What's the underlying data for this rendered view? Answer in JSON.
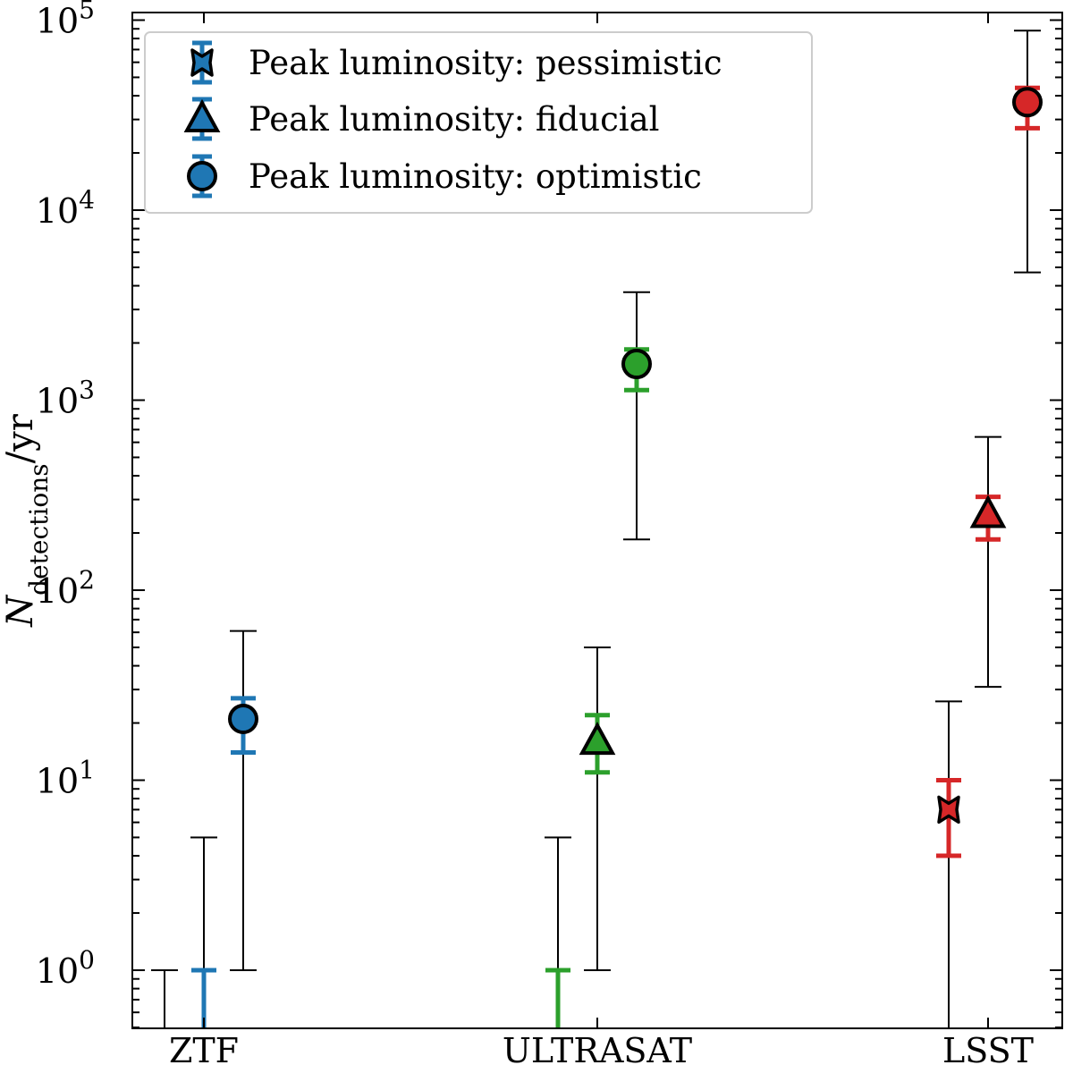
{
  "chart_data": {
    "type": "scatter",
    "title": "",
    "xlabel": "",
    "ylabel": "N_detections/yr",
    "ylabel_main": "N",
    "ylabel_sub": "detections",
    "ylabel_tail": "/yr",
    "yscale": "log",
    "ylim": [
      0.5,
      110000
    ],
    "grid": false,
    "legend_position": "top-left",
    "categories": [
      "ZTF",
      "ULTRASAT",
      "LSST"
    ],
    "category_colors": {
      "ZTF": "#1f77b4",
      "ULTRASAT": "#2ca02c",
      "LSST": "#d62728"
    },
    "ytick_labels": [
      {
        "value": 1,
        "base": "10",
        "exp": "0"
      },
      {
        "value": 10,
        "base": "10",
        "exp": "1"
      },
      {
        "value": 100,
        "base": "10",
        "exp": "2"
      },
      {
        "value": 1000,
        "base": "10",
        "exp": "3"
      },
      {
        "value": 10000,
        "base": "10",
        "exp": "4"
      },
      {
        "value": 100000,
        "base": "10",
        "exp": "5"
      }
    ],
    "series": [
      {
        "name": "Peak luminosity: pessimistic",
        "marker": "X",
        "legend_color": "#1f77b4",
        "points": [
          {
            "category": "ZTF",
            "value": null,
            "inner": null,
            "outer": [
              0,
              1
            ]
          },
          {
            "category": "ULTRASAT",
            "value": null,
            "inner": [
              0,
              1
            ],
            "outer": [
              0,
              5
            ]
          },
          {
            "category": "LSST",
            "value": 7,
            "inner": [
              4,
              10
            ],
            "outer": [
              0,
              26
            ]
          }
        ]
      },
      {
        "name": "Peak luminosity: fiducial",
        "marker": "triangle",
        "legend_color": "#1f77b4",
        "points": [
          {
            "category": "ZTF",
            "value": null,
            "inner": [
              0,
              1
            ],
            "outer": [
              0,
              5
            ]
          },
          {
            "category": "ULTRASAT",
            "value": 16,
            "inner": [
              11,
              22
            ],
            "outer": [
              1,
              50
            ]
          },
          {
            "category": "LSST",
            "value": 250,
            "inner": [
              185,
              310
            ],
            "outer": [
              31,
              640
            ]
          }
        ]
      },
      {
        "name": "Peak luminosity: optimistic",
        "marker": "circle",
        "legend_color": "#1f77b4",
        "points": [
          {
            "category": "ZTF",
            "value": 21,
            "inner": [
              14,
              27
            ],
            "outer": [
              1,
              61
            ]
          },
          {
            "category": "ULTRASAT",
            "value": 1550,
            "inner": [
              1130,
              1850
            ],
            "outer": [
              185,
              3700
            ]
          },
          {
            "category": "LSST",
            "value": 37000,
            "inner": [
              27000,
              44000
            ],
            "outer": [
              4700,
              88000
            ]
          }
        ]
      }
    ]
  }
}
